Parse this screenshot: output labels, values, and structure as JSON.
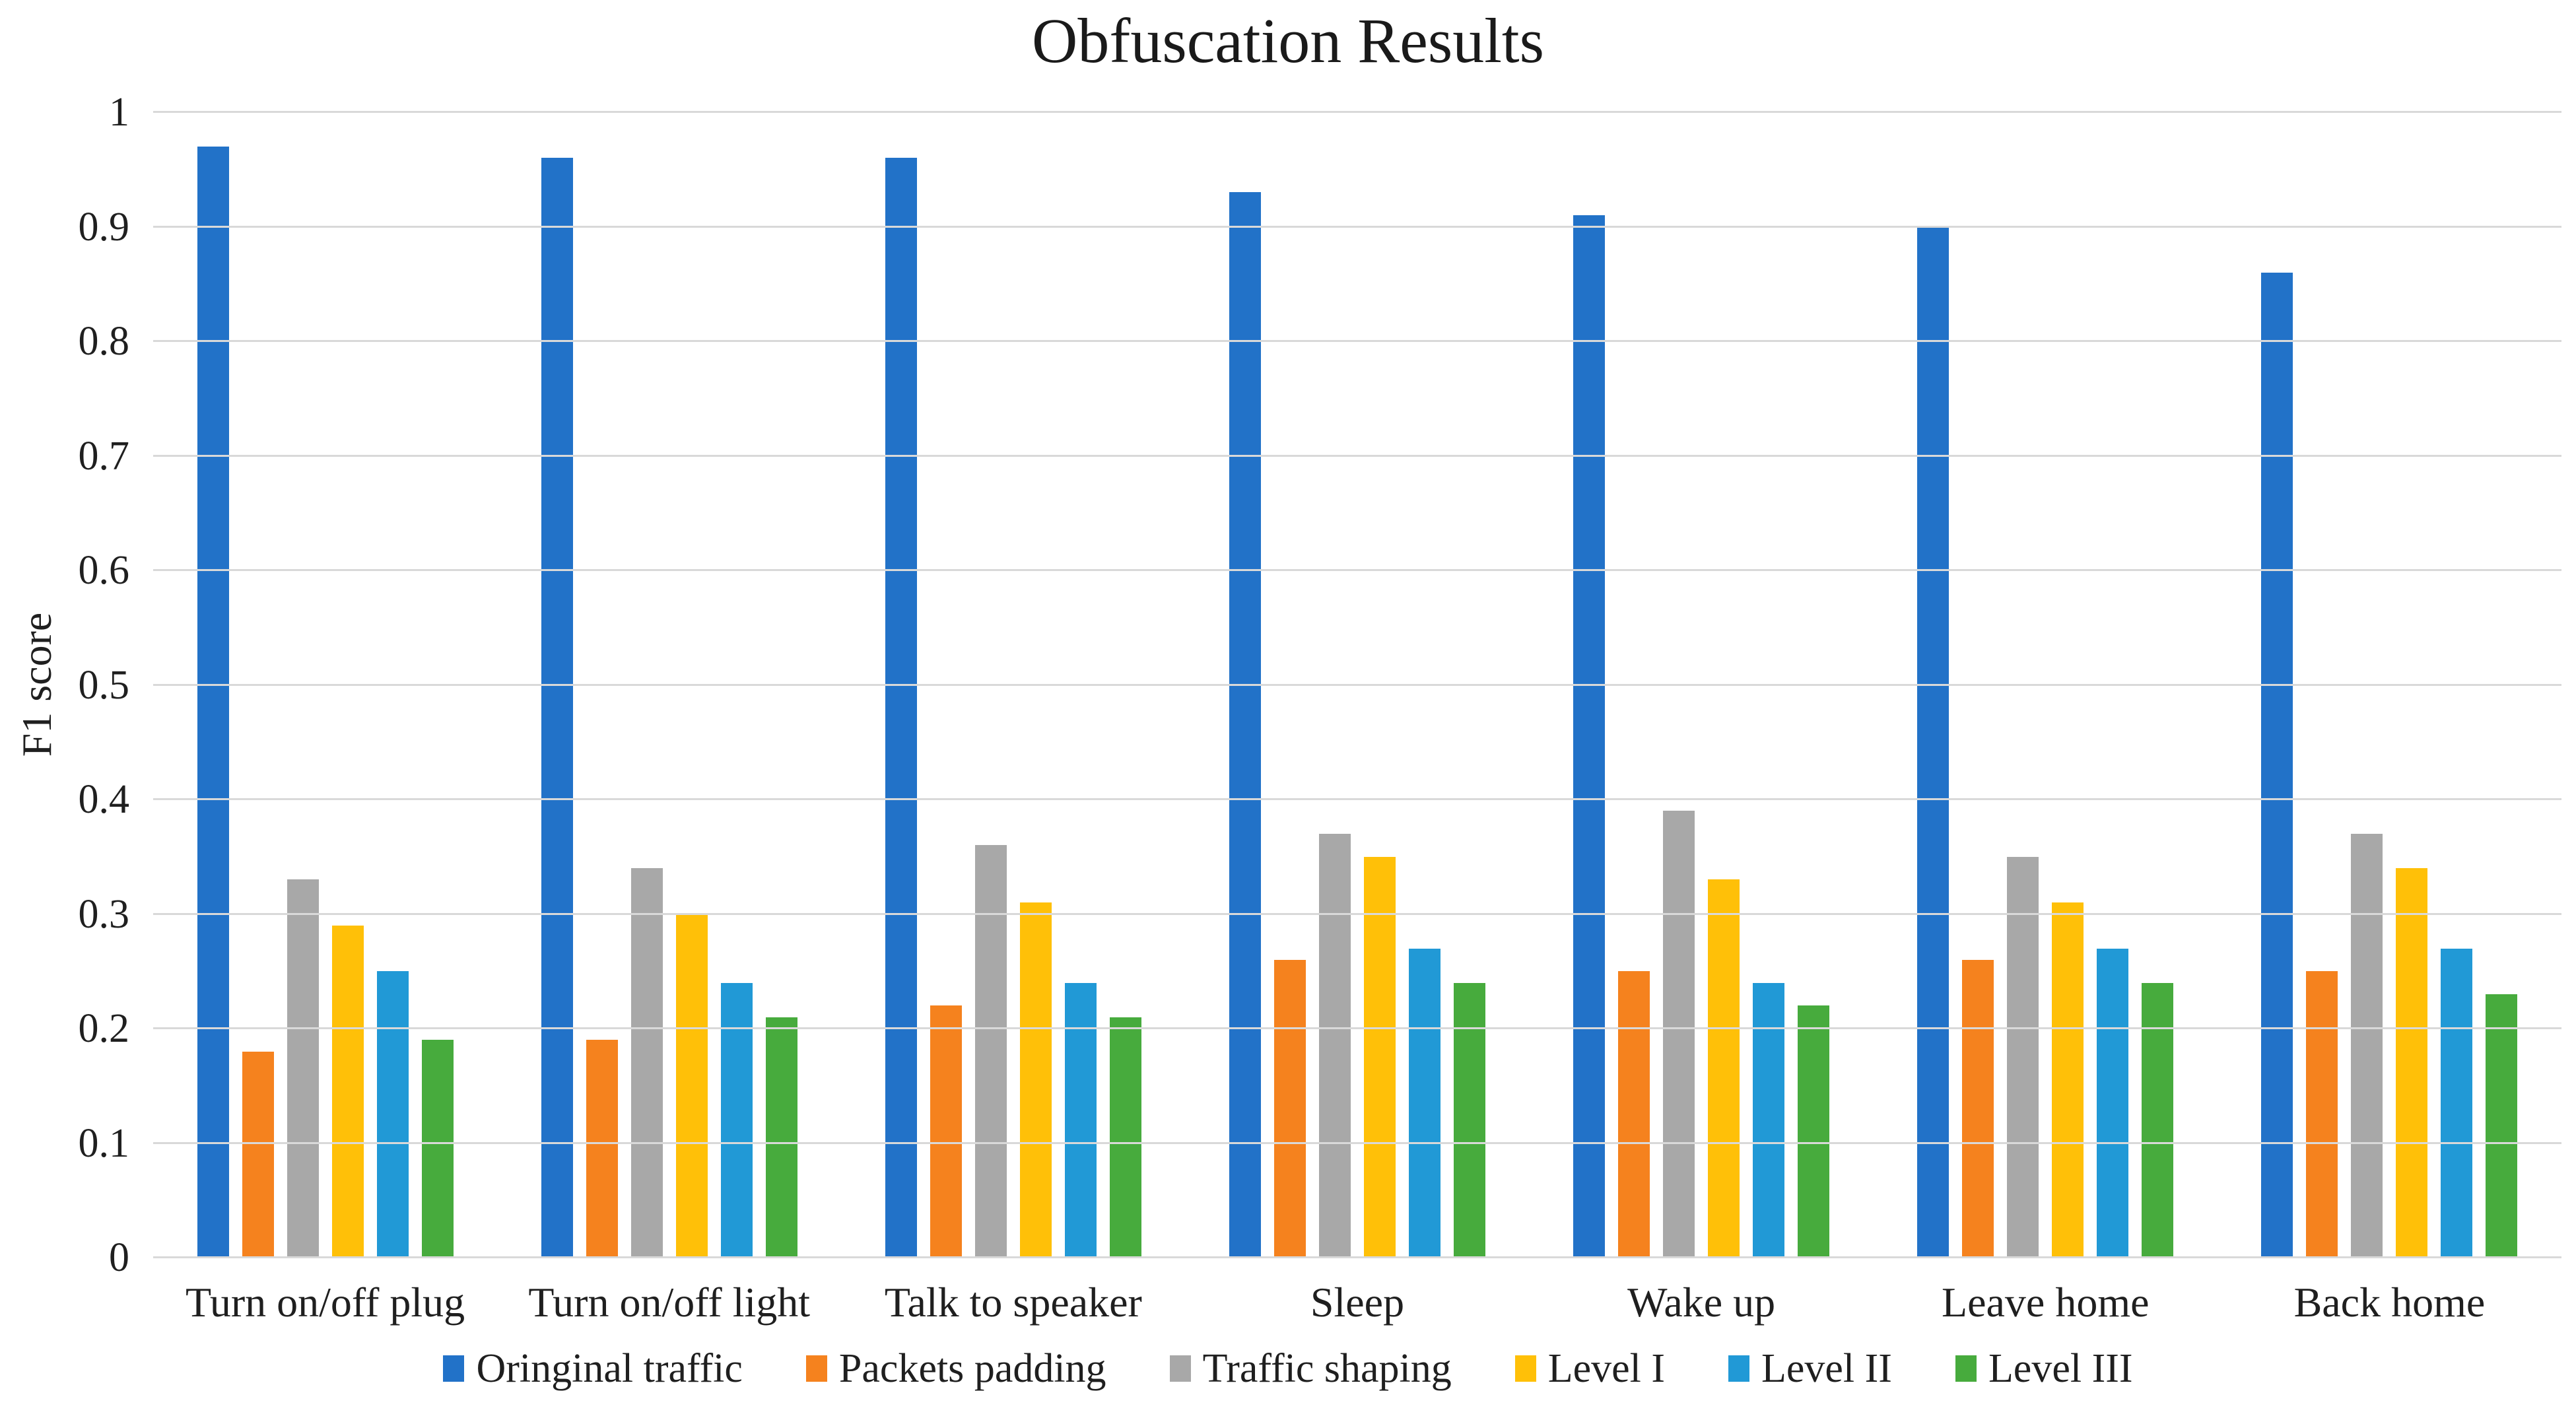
{
  "chart_data": {
    "type": "bar",
    "title": "Obfuscation Results",
    "xlabel": "",
    "ylabel": "F1 score",
    "ylim": [
      0,
      1
    ],
    "ytick_values": [
      0,
      0.1,
      0.2,
      0.3,
      0.4,
      0.5,
      0.6,
      0.7,
      0.8,
      0.9,
      1
    ],
    "ytick_labels": [
      "0",
      "0.1",
      "0.2",
      "0.3",
      "0.4",
      "0.5",
      "0.6",
      "0.7",
      "0.8",
      "0.9",
      "1"
    ],
    "grid": true,
    "gridline_color": "#d9d9d9",
    "legend_position": "bottom",
    "categories": [
      "Turn on/off plug",
      "Turn on/off light",
      "Talk to speaker",
      "Sleep",
      "Wake up",
      "Leave home",
      "Back home"
    ],
    "series": [
      {
        "name": "Oringinal traffic",
        "color": "#2272c8",
        "values": [
          0.97,
          0.96,
          0.96,
          0.93,
          0.91,
          0.9,
          0.86
        ]
      },
      {
        "name": "Packets padding",
        "color": "#f5821e",
        "values": [
          0.18,
          0.19,
          0.22,
          0.26,
          0.25,
          0.26,
          0.25
        ]
      },
      {
        "name": "Traffic shaping",
        "color": "#a8a8a8",
        "values": [
          0.33,
          0.34,
          0.36,
          0.37,
          0.39,
          0.35,
          0.37
        ]
      },
      {
        "name": "Level I",
        "color": "#ffc008",
        "values": [
          0.29,
          0.3,
          0.31,
          0.35,
          0.33,
          0.31,
          0.34
        ]
      },
      {
        "name": "Level II",
        "color": "#2199d6",
        "values": [
          0.25,
          0.24,
          0.24,
          0.27,
          0.24,
          0.27,
          0.27
        ]
      },
      {
        "name": "Level III",
        "color": "#47ab3d",
        "values": [
          0.19,
          0.21,
          0.21,
          0.24,
          0.22,
          0.24,
          0.23
        ]
      }
    ]
  }
}
